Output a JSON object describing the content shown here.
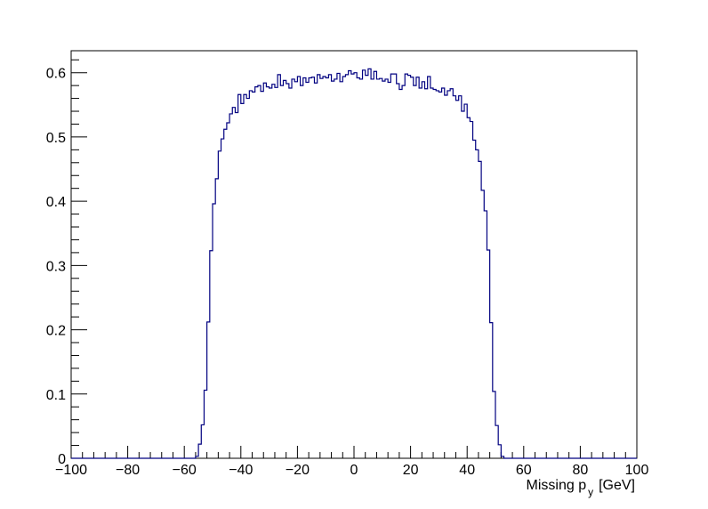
{
  "chart_data": {
    "type": "histogram",
    "title": "",
    "xlabel_main": "Missing p",
    "xlabel_sub": "y",
    "xlabel_unit": "[GeV]",
    "ylabel": "",
    "xlim": [
      -100,
      100
    ],
    "ylim": [
      0,
      0.6342
    ],
    "x_ticks": [
      -100,
      -80,
      -60,
      -40,
      -20,
      0,
      20,
      40,
      60,
      80,
      100
    ],
    "x_tick_labels": [
      "−100",
      "−80",
      "−60",
      "−40",
      "−20",
      "0",
      "20",
      "40",
      "60",
      "80",
      "100"
    ],
    "y_ticks": [
      0,
      0.1,
      0.2,
      0.3,
      0.4,
      0.5,
      0.6
    ],
    "y_tick_labels": [
      "0",
      "0.1",
      "0.2",
      "0.3",
      "0.4",
      "0.5",
      "0.6"
    ],
    "grid": false,
    "legend": "none",
    "line_color": "#000080",
    "bin_width": 1,
    "bin_start": -56,
    "values": [
      0.003,
      0.022,
      0.052,
      0.106,
      0.212,
      0.323,
      0.396,
      0.435,
      0.478,
      0.497,
      0.512,
      0.522,
      0.536,
      0.546,
      0.538,
      0.566,
      0.552,
      0.566,
      0.56,
      0.572,
      0.57,
      0.578,
      0.58,
      0.571,
      0.584,
      0.578,
      0.576,
      0.582,
      0.577,
      0.597,
      0.58,
      0.588,
      0.583,
      0.576,
      0.59,
      0.586,
      0.594,
      0.58,
      0.592,
      0.585,
      0.592,
      0.593,
      0.584,
      0.597,
      0.591,
      0.594,
      0.592,
      0.597,
      0.587,
      0.59,
      0.599,
      0.586,
      0.594,
      0.597,
      0.603,
      0.598,
      0.6,
      0.592,
      0.59,
      0.604,
      0.596,
      0.606,
      0.59,
      0.602,
      0.59,
      0.591,
      0.587,
      0.59,
      0.585,
      0.598,
      0.598,
      0.583,
      0.574,
      0.58,
      0.598,
      0.596,
      0.593,
      0.58,
      0.593,
      0.576,
      0.586,
      0.575,
      0.594,
      0.576,
      0.574,
      0.572,
      0.57,
      0.576,
      0.565,
      0.572,
      0.575,
      0.564,
      0.557,
      0.564,
      0.54,
      0.551,
      0.53,
      0.524,
      0.495,
      0.48,
      0.462,
      0.417,
      0.385,
      0.324,
      0.211,
      0.104,
      0.051,
      0.021,
      0.003
    ]
  }
}
